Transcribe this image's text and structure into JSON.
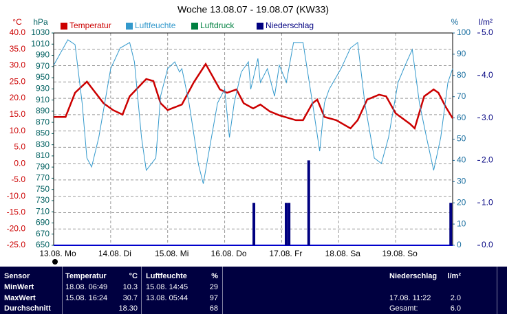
{
  "chart_data": {
    "type": "line",
    "title": "Woche 13.08.07 - 19.08.07 (KW33)",
    "ylabel": "°C",
    "y3label": "hPa",
    "y2label": "%",
    "y4label": "l/m²",
    "xlim": [
      0,
      168
    ],
    "xticks": [
      {
        "value": 0,
        "label": "13.08. Mo"
      },
      {
        "value": 24,
        "label": "14.08. Di"
      },
      {
        "value": 48,
        "label": "15.08. Mi"
      },
      {
        "value": 72,
        "label": "16.08. Do"
      },
      {
        "value": 96,
        "label": "17.08. Fr"
      },
      {
        "value": 120,
        "label": "18.08. Sa"
      },
      {
        "value": 144,
        "label": "19.08. So"
      }
    ],
    "ylim": [
      -25,
      40
    ],
    "yticks": [
      {
        "value": 40,
        "label": "40.0"
      },
      {
        "value": 35,
        "label": "35.0"
      },
      {
        "value": 30,
        "label": "30.0"
      },
      {
        "value": 25,
        "label": "25.0"
      },
      {
        "value": 20,
        "label": "20.0"
      },
      {
        "value": 15,
        "label": "15.0"
      },
      {
        "value": 10,
        "label": "10.0"
      },
      {
        "value": 5,
        "label": "5.0"
      },
      {
        "value": 0,
        "label": "0.0"
      },
      {
        "value": -5,
        "label": "-5.0"
      },
      {
        "value": -10,
        "label": "-10.0"
      },
      {
        "value": -15,
        "label": "-15.0"
      },
      {
        "value": -20,
        "label": "-20.0"
      },
      {
        "value": -25,
        "label": "-25.0"
      }
    ],
    "y3lim": [
      650,
      1030
    ],
    "y3ticks": [
      1030,
      1010,
      990,
      970,
      950,
      930,
      910,
      890,
      870,
      850,
      830,
      810,
      790,
      770,
      750,
      730,
      710,
      690,
      670,
      650
    ],
    "y2lim": [
      0,
      100
    ],
    "y2ticks": [
      100,
      90,
      80,
      70,
      60,
      50,
      40,
      30,
      20,
      10,
      0
    ],
    "y4lim": [
      0,
      5
    ],
    "y4ticks": [
      {
        "value": 5,
        "label": "5.0"
      },
      {
        "value": 4,
        "label": "4.0"
      },
      {
        "value": 3,
        "label": "3.0"
      },
      {
        "value": 2,
        "label": "2.0"
      },
      {
        "value": 1,
        "label": "1.0"
      },
      {
        "value": 0,
        "label": "0.0"
      }
    ],
    "grid": true,
    "series": [
      {
        "name": "Temperatur",
        "color": "#cc0000",
        "axis": "y",
        "type": "line",
        "x": [
          0,
          5,
          9,
          14,
          21,
          25,
          29,
          32,
          39,
          42,
          45,
          48,
          54,
          59,
          64,
          70,
          73,
          77,
          80,
          84,
          87,
          91,
          95,
          102,
          105,
          109,
          111,
          114,
          119,
          125,
          128,
          132,
          137,
          140,
          144,
          150,
          152,
          156,
          160,
          162,
          165,
          168
        ],
        "values": [
          14.3,
          14.3,
          21.7,
          25.1,
          18.5,
          16.4,
          15.0,
          20.6,
          25.9,
          25.3,
          18.5,
          16.4,
          18.1,
          24.9,
          30.5,
          22.7,
          21.7,
          22.7,
          18.5,
          16.9,
          18.1,
          16.0,
          14.8,
          13.3,
          13.3,
          18.5,
          19.6,
          14.3,
          13.3,
          10.8,
          13.3,
          19.6,
          21.1,
          20.6,
          15.4,
          12.2,
          10.8,
          20.6,
          22.7,
          21.7,
          17.5,
          13.9
        ]
      },
      {
        "name": "Luftfeuchte",
        "color": "#3399cc",
        "axis": "y2",
        "type": "line",
        "x": [
          0,
          6,
          9,
          12,
          14,
          16,
          19,
          24,
          28,
          32,
          34,
          37,
          39,
          43,
          45,
          48,
          51,
          53,
          54,
          57,
          61,
          63,
          69,
          72,
          74,
          76,
          79,
          82,
          83,
          86,
          87,
          90,
          93,
          95,
          98,
          101,
          105,
          109,
          112,
          114,
          116,
          121,
          125,
          128,
          131,
          135,
          138,
          141,
          145,
          148,
          151,
          154,
          157,
          160,
          163,
          166,
          168
        ],
        "values": [
          84.8,
          96.8,
          94.5,
          67,
          41.1,
          36.9,
          50.8,
          83.2,
          92.9,
          95.5,
          86.4,
          50.8,
          35.3,
          41.1,
          70.2,
          83.2,
          86.4,
          81.6,
          83.2,
          67,
          37.9,
          29,
          67,
          73.5,
          50.8,
          67,
          81.6,
          86.4,
          73.5,
          88,
          76.7,
          83.2,
          70.2,
          84.8,
          76.7,
          95.5,
          95.5,
          67,
          44.3,
          67,
          73.5,
          83.2,
          92.9,
          95.5,
          67,
          41.1,
          38.5,
          50.8,
          76.7,
          84.8,
          92.2,
          67,
          50.8,
          35.3,
          50.8,
          76.7,
          83.2
        ]
      },
      {
        "name": "Luftdruck",
        "color": "#008040",
        "axis": "y3",
        "type": "line",
        "x": [],
        "values": []
      },
      {
        "name": "Niederschlag",
        "color": "#000080",
        "axis": "y4",
        "type": "bar",
        "x": [
          84.3,
          97.9,
          99.1,
          107.4,
          167.2
        ],
        "values": [
          1.0,
          1.0,
          1.0,
          2.0,
          1.0
        ]
      }
    ]
  },
  "table": {
    "header": {
      "sensor": "Sensor",
      "temp": "Temperatur",
      "temp_unit": "°C",
      "hum": "Luftfeuchte",
      "hum_unit": "%",
      "rain": "Niederschlag",
      "rain_unit": "l/m²"
    },
    "rows": [
      {
        "label": "MinWert",
        "temp_time": "18.08. 06:49",
        "temp": "10.3",
        "hum_time": "15.08. 14:45",
        "hum": "29"
      },
      {
        "label": "MaxWert",
        "temp_time": "15.08. 16:24",
        "temp": "30.7",
        "hum_time": "13.08. 05:44",
        "hum": "97",
        "rain_time": "17.08. 11:22",
        "rain": "2.0"
      },
      {
        "label": "Durchschnitt",
        "temp": "18.30",
        "hum": "68",
        "rain_time": "Gesamt:",
        "rain": "6.0"
      }
    ]
  }
}
